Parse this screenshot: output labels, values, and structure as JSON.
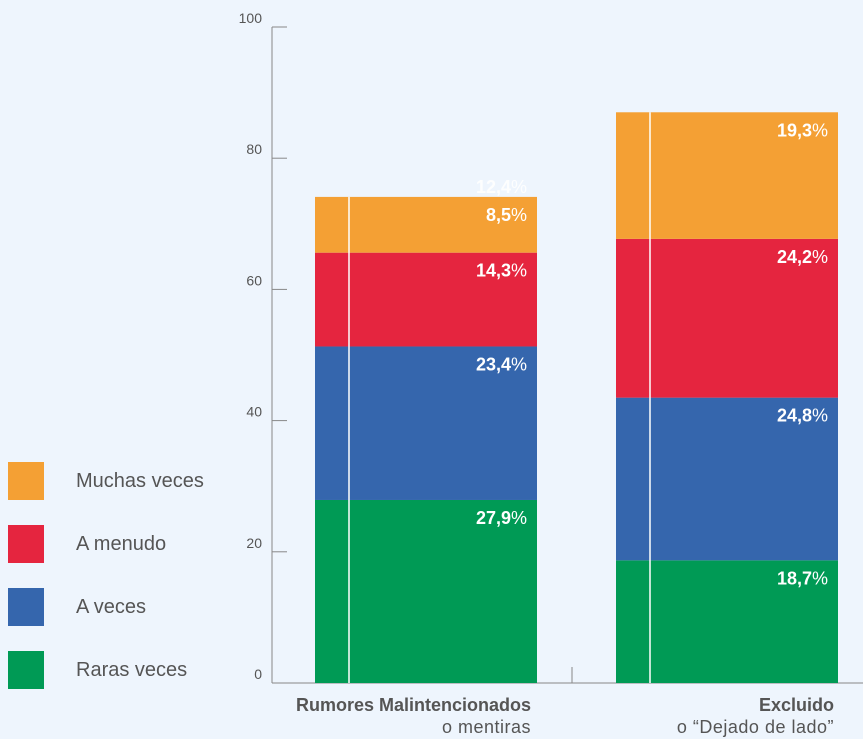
{
  "chart_data": {
    "type": "bar",
    "stacked": true,
    "categories": [
      {
        "main": "Rumores Malintencionados",
        "sub": "o mentiras"
      },
      {
        "main": "Excluido",
        "sub": "o “Dejado de lado”"
      }
    ],
    "series": [
      {
        "name": "Raras veces",
        "color": "#009a55",
        "values": [
          27.9,
          18.7
        ]
      },
      {
        "name": "A veces",
        "color": "#3566ad",
        "values": [
          23.4,
          24.8
        ]
      },
      {
        "name": "A menudo",
        "color": "#e5253f",
        "values": [
          14.3,
          24.2
        ]
      },
      {
        "name": "Muchas veces",
        "color": "#f4a034",
        "values": [
          8.5,
          19.3
        ]
      }
    ],
    "extra_labels": [
      {
        "category_index": 0,
        "value": "12,4"
      }
    ],
    "yticks": [
      0,
      20,
      40,
      60,
      80,
      100
    ],
    "ylim": [
      0,
      100
    ],
    "legend_placement": "left",
    "grid": false,
    "value_suffix": "%"
  },
  "legend": {
    "items": [
      {
        "label": "Muchas veces",
        "color": "#f4a034"
      },
      {
        "label": "A menudo",
        "color": "#e5253f"
      },
      {
        "label": "A veces",
        "color": "#3566ad"
      },
      {
        "label": "Raras veces",
        "color": "#009a55"
      }
    ]
  }
}
